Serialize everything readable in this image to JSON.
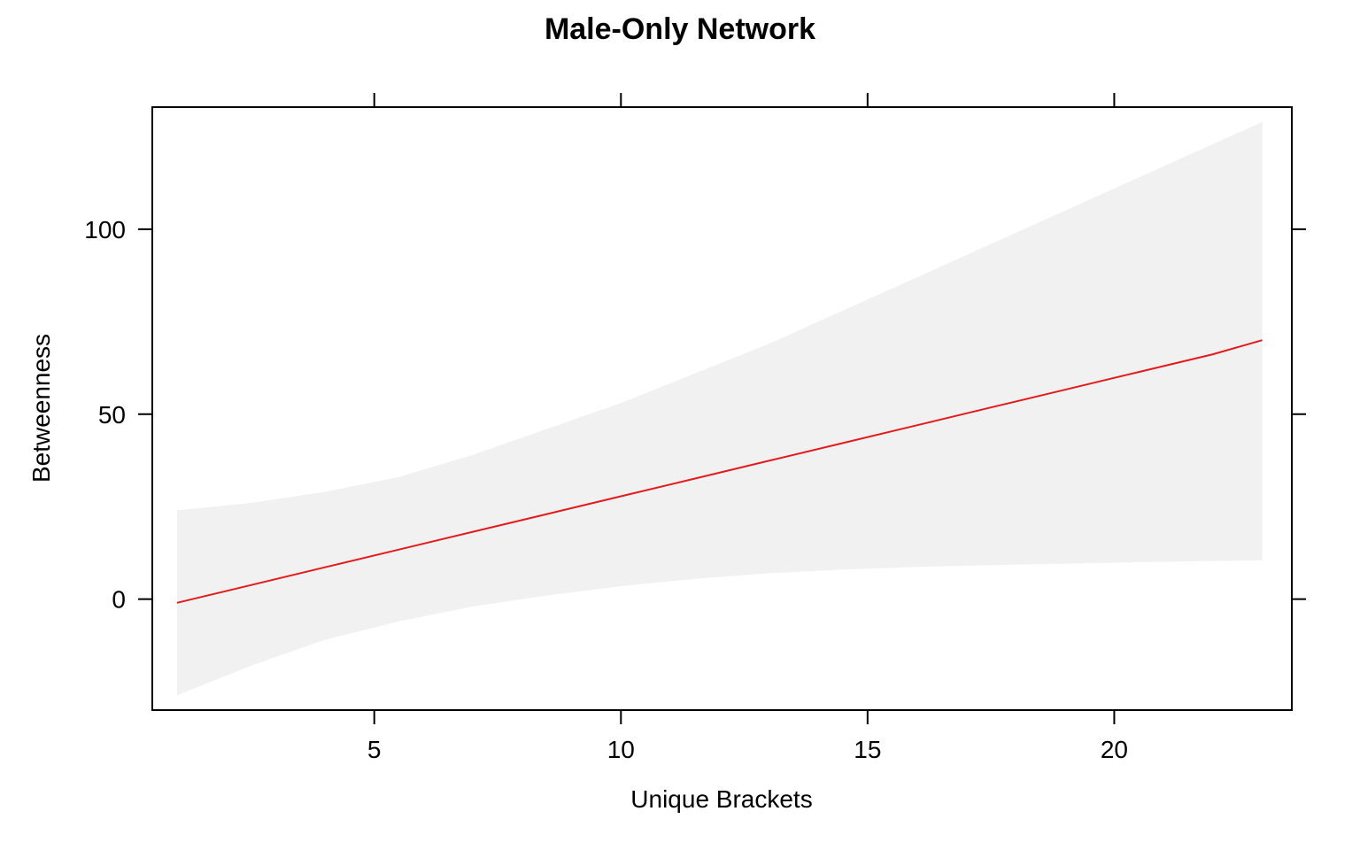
{
  "chart_data": {
    "type": "line",
    "title": "Male-Only Network",
    "xlabel": "Unique Brackets",
    "ylabel": "Betweenness",
    "xlim": [
      0.5,
      23.6
    ],
    "ylim": [
      -30,
      133
    ],
    "x_ticks": [
      5,
      10,
      15,
      20
    ],
    "y_ticks": [
      0,
      50,
      100
    ],
    "x_tick_labels": [
      "5",
      "10",
      "15",
      "20"
    ],
    "y_tick_labels": [
      "0",
      "50",
      "100"
    ],
    "grid": false,
    "colors": {
      "line": "#e31a1c",
      "band": "#f1f1f1",
      "axis": "#000000"
    },
    "series": [
      {
        "x": [
          1,
          2.5,
          4,
          5.5,
          7,
          8.5,
          10,
          11.5,
          13,
          14.5,
          16,
          17.5,
          19,
          20.5,
          22,
          23
        ],
        "fit": [
          -1,
          3.8,
          8.6,
          13.4,
          18.2,
          23,
          27.8,
          32.6,
          37.4,
          42.2,
          47,
          51.8,
          56.6,
          61.4,
          66.2,
          70
        ],
        "lower": [
          -26,
          -18,
          -11,
          -6,
          -2,
          1,
          3.5,
          5.5,
          7,
          8,
          8.7,
          9.2,
          9.6,
          10,
          10.3,
          10.5
        ],
        "upper": [
          24,
          26,
          29,
          33,
          39,
          46,
          53,
          61,
          69,
          78,
          87,
          96,
          105,
          114,
          123,
          129
        ]
      }
    ]
  }
}
